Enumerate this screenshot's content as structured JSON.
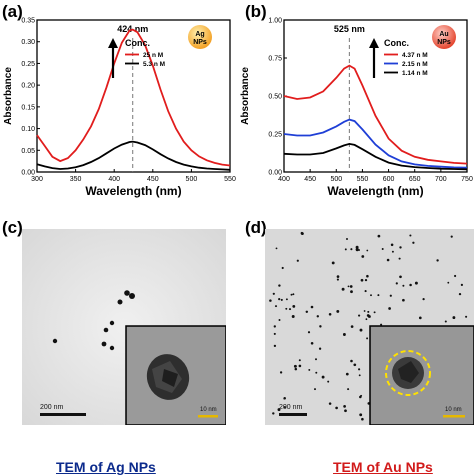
{
  "panels": {
    "a": {
      "letter": "(a)"
    },
    "b": {
      "letter": "(b)"
    },
    "c": {
      "letter": "(c)"
    },
    "d": {
      "letter": "(d)"
    }
  },
  "chart_data": [
    {
      "type": "line",
      "panel": "(a)",
      "xlabel": "Wavelength (nm)",
      "ylabel": "Absorbance",
      "xlim": [
        300,
        550
      ],
      "ylim": [
        0,
        0.35
      ],
      "x_ticks": [
        "300",
        "350",
        "400",
        "450",
        "500",
        "550"
      ],
      "y_ticks": [
        "0.00",
        "0.05",
        "0.10",
        "0.15",
        "0.20",
        "0.25",
        "0.30",
        "0.35"
      ],
      "peak_label": "424 nm",
      "peak_x": 424,
      "legend_title": "Conc.",
      "badge_text": [
        "Ag",
        "NPs"
      ],
      "series": [
        {
          "name": "25  n M",
          "color": "#e11d1d",
          "x": [
            300,
            310,
            320,
            330,
            340,
            350,
            360,
            370,
            380,
            390,
            400,
            410,
            420,
            424,
            430,
            440,
            450,
            460,
            470,
            480,
            490,
            500,
            510,
            520,
            530,
            540,
            550
          ],
          "y": [
            0.085,
            0.06,
            0.035,
            0.025,
            0.032,
            0.05,
            0.075,
            0.105,
            0.145,
            0.195,
            0.25,
            0.298,
            0.326,
            0.328,
            0.322,
            0.292,
            0.245,
            0.19,
            0.14,
            0.1,
            0.07,
            0.05,
            0.036,
            0.027,
            0.021,
            0.017,
            0.015
          ]
        },
        {
          "name": "5.3 n M",
          "color": "#000000",
          "x": [
            300,
            310,
            320,
            330,
            340,
            350,
            360,
            370,
            380,
            390,
            400,
            410,
            420,
            424,
            430,
            440,
            450,
            460,
            470,
            480,
            490,
            500,
            510,
            520,
            530,
            540,
            550
          ],
          "y": [
            0.018,
            0.013,
            0.009,
            0.007,
            0.008,
            0.011,
            0.016,
            0.023,
            0.032,
            0.043,
            0.054,
            0.063,
            0.069,
            0.07,
            0.068,
            0.062,
            0.052,
            0.041,
            0.031,
            0.023,
            0.017,
            0.013,
            0.01,
            0.008,
            0.007,
            0.006,
            0.005
          ]
        }
      ]
    },
    {
      "type": "line",
      "panel": "(b)",
      "xlabel": "Wavelength (nm)",
      "ylabel": "Absorbance",
      "xlim": [
        400,
        750
      ],
      "ylim": [
        0,
        1.0
      ],
      "x_ticks": [
        "400",
        "450",
        "500",
        "550",
        "600",
        "650",
        "700",
        "750"
      ],
      "y_ticks": [
        "0.00",
        "0.25",
        "0.50",
        "0.75",
        "1.00"
      ],
      "peak_label": "525 nm",
      "peak_x": 525,
      "legend_title": "Conc.",
      "badge_text": [
        "Au",
        "NPs"
      ],
      "series": [
        {
          "name": "4.37 n M",
          "color": "#e11d1d",
          "x": [
            400,
            425,
            450,
            475,
            500,
            515,
            525,
            535,
            550,
            575,
            600,
            625,
            650,
            675,
            700,
            725,
            750
          ],
          "y": [
            0.5,
            0.48,
            0.49,
            0.53,
            0.62,
            0.68,
            0.7,
            0.68,
            0.57,
            0.37,
            0.22,
            0.14,
            0.1,
            0.08,
            0.07,
            0.06,
            0.055
          ]
        },
        {
          "name": "2.15 n M",
          "color": "#1f3fd6",
          "x": [
            400,
            425,
            450,
            475,
            500,
            515,
            525,
            535,
            550,
            575,
            600,
            625,
            650,
            675,
            700,
            725,
            750
          ],
          "y": [
            0.25,
            0.24,
            0.24,
            0.26,
            0.3,
            0.33,
            0.345,
            0.335,
            0.28,
            0.18,
            0.11,
            0.07,
            0.05,
            0.04,
            0.035,
            0.03,
            0.028
          ]
        },
        {
          "name": "1.14 n M",
          "color": "#000000",
          "x": [
            400,
            425,
            450,
            475,
            500,
            515,
            525,
            535,
            550,
            575,
            600,
            625,
            650,
            675,
            700,
            725,
            750
          ],
          "y": [
            0.12,
            0.115,
            0.115,
            0.125,
            0.155,
            0.175,
            0.185,
            0.178,
            0.15,
            0.1,
            0.062,
            0.042,
            0.032,
            0.026,
            0.022,
            0.02,
            0.018
          ]
        }
      ]
    }
  ],
  "tem": {
    "ag": {
      "scale_bar": "200 nm",
      "inset_scale_bar": "10 nm",
      "caption": "TEM of Ag NPs",
      "caption_color": "#0b2a8c"
    },
    "au": {
      "scale_bar": "200 nm",
      "inset_scale_bar": "10 nm",
      "caption": "TEM of Au NPs",
      "caption_color": "#d11a1a"
    }
  }
}
